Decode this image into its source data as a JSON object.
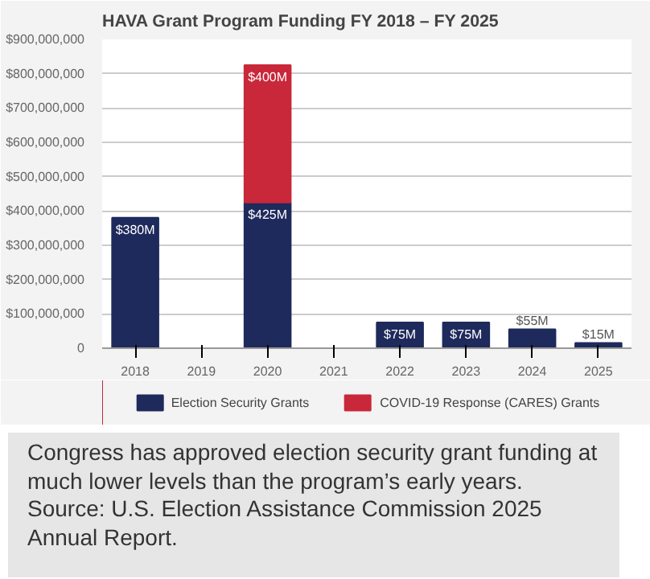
{
  "chart_data": {
    "type": "bar",
    "title": "HAVA Grant Program Funding FY 2018 – FY 2025",
    "stacked": true,
    "categories": [
      "2018",
      "2019",
      "2020",
      "2021",
      "2022",
      "2023",
      "2024",
      "2025"
    ],
    "series": [
      {
        "name": "Election Security Grants",
        "color": "#1f2a5c",
        "values": [
          380000000,
          null,
          425000000,
          null,
          75000000,
          75000000,
          55000000,
          15000000
        ],
        "value_labels": [
          "$380M",
          null,
          "$425M",
          null,
          "$75M",
          "$75M",
          "$55M",
          "$15M"
        ]
      },
      {
        "name": "COVID-19 Response (CARES) Grants",
        "color": "#c8283a",
        "values": [
          null,
          null,
          400000000,
          null,
          null,
          null,
          null,
          null
        ],
        "value_labels": [
          null,
          null,
          "$400M",
          null,
          null,
          null,
          null,
          null
        ]
      }
    ],
    "ylim": [
      0,
      900000000
    ],
    "yticks": [
      {
        "value": 0,
        "label": "0"
      },
      {
        "value": 100000000,
        "label": "$100,000,000"
      },
      {
        "value": 200000000,
        "label": "$200,000,000"
      },
      {
        "value": 300000000,
        "label": "$300,000,000"
      },
      {
        "value": 400000000,
        "label": "$400,000,000"
      },
      {
        "value": 500000000,
        "label": "$500,000,000"
      },
      {
        "value": 600000000,
        "label": "$600,000,000"
      },
      {
        "value": 700000000,
        "label": "$700,000,000"
      },
      {
        "value": 800000000,
        "label": "$800,000,000"
      },
      {
        "value": 900000000,
        "label": "$900,000,000"
      }
    ],
    "grid": "y",
    "legend": "bottom",
    "annotations": [
      "Congress has approved election security grant funding at much lower levels than the program’s early years.",
      "Source: U.S. Election Assistance Commission 2025 Annual Report."
    ]
  }
}
